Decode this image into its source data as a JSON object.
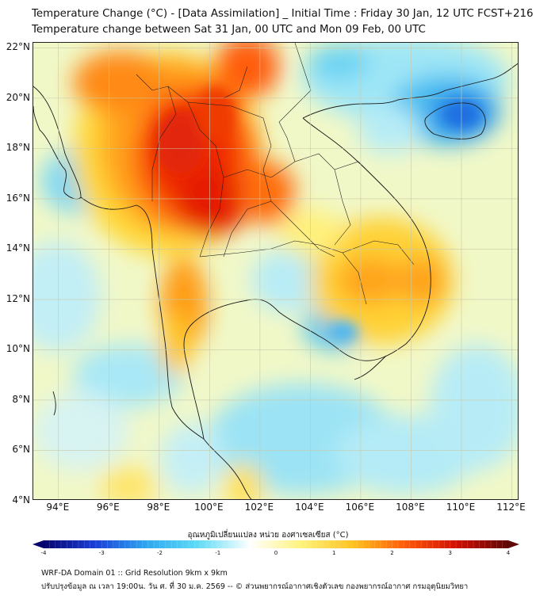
{
  "header": {
    "title_line1": "Temperature Change (°C) - [Data Assimilation] _ Initial Time : Friday 30 Jan, 12 UTC FCST+216",
    "title_line2": "Temperature change between Sat 31 Jan, 00 UTC and Mon 09 Feb, 00 UTC"
  },
  "map": {
    "lat_labels": [
      "22°N",
      "20°N",
      "18°N",
      "16°N",
      "14°N",
      "12°N",
      "10°N",
      "8°N",
      "6°N",
      "4°N"
    ],
    "lon_labels": [
      "94°E",
      "96°E",
      "98°E",
      "100°E",
      "102°E",
      "104°E",
      "106°E",
      "108°E",
      "110°E",
      "112°E"
    ],
    "lat_range": [
      4,
      22.2
    ],
    "lon_range": [
      93,
      112.3
    ],
    "grid": true
  },
  "colorbar": {
    "title": "อุณหภูมิเปลี่ยนแปลง หน่วย องศาเซลเซียส (°C)",
    "ticks": [
      "-4",
      "-3",
      "-2",
      "-1",
      "0",
      "1",
      "2",
      "3",
      "4"
    ],
    "range": [
      -4,
      4
    ],
    "colors": [
      "#06046e",
      "#1a3fd8",
      "#2fa8f0",
      "#5fdcf6",
      "#ffffff",
      "#fff27a",
      "#ffc21f",
      "#ff5a0a",
      "#d10f00",
      "#5e0707"
    ]
  },
  "footer": {
    "line1": "WRF-DA Domain 01 :: Grid Resolution 9km x 9km",
    "line2": "ปรับปรุงข้อมูล ณ เวลา 19:00น. วัน ศ. ที่ 30 ม.ค. 2569 -- © ส่วนพยากรณ์อากาศเชิงตัวเลข กองพยากรณ์อากาศ กรมอุตุนิยมวิทยา"
  }
}
